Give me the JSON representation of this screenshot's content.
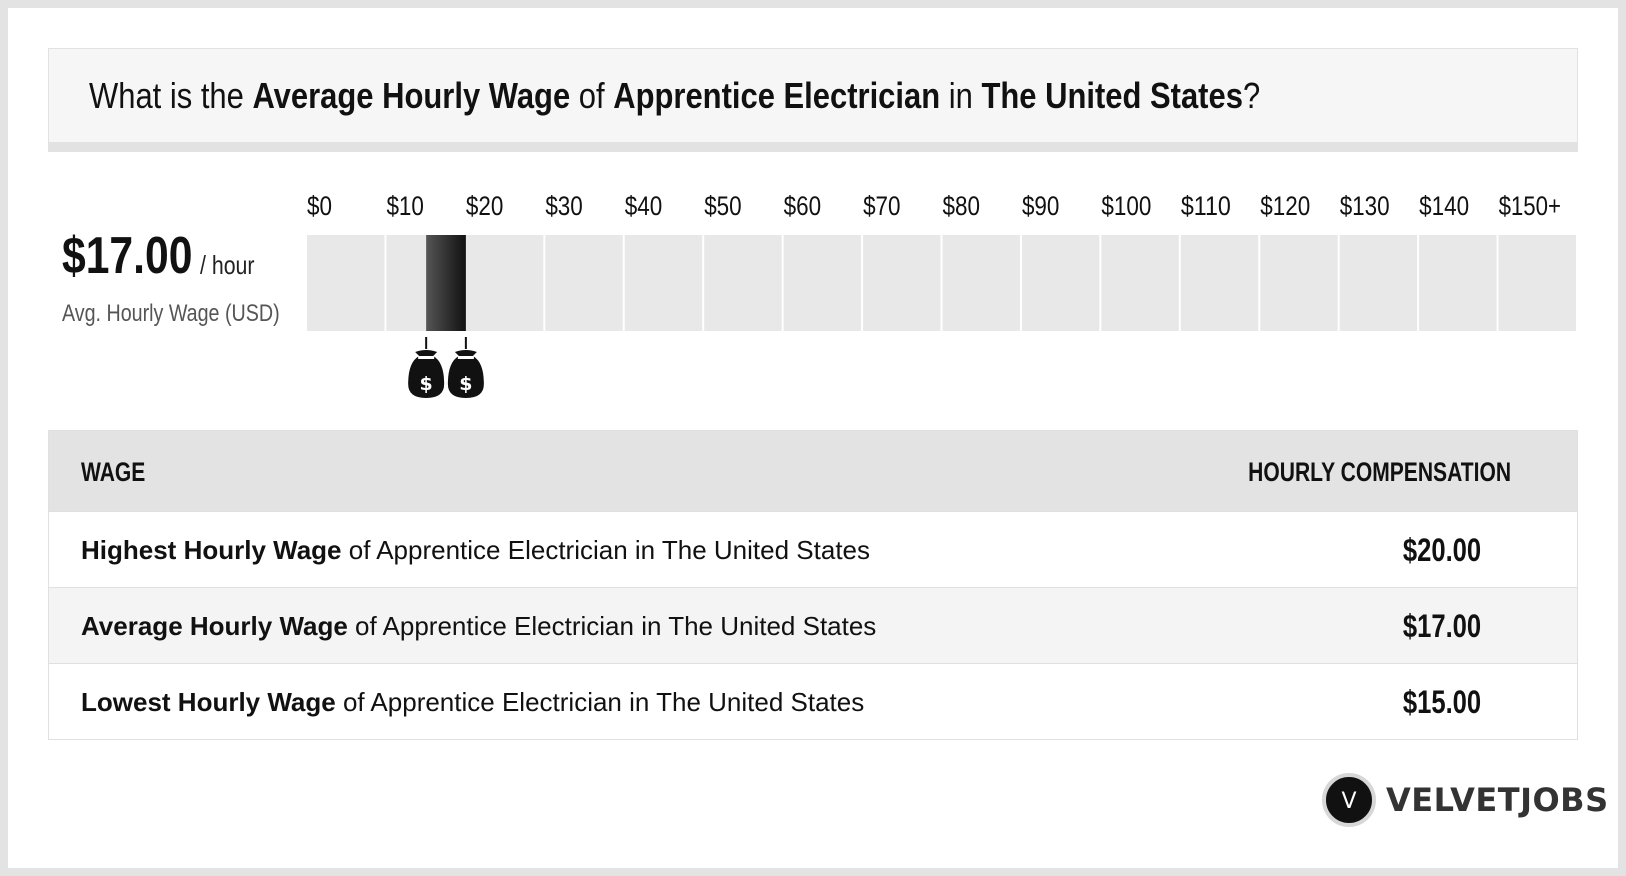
{
  "title": {
    "prefix": "What is the ",
    "metric": "Average Hourly Wage",
    "of": " of ",
    "job": "Apprentice Electrician",
    "in": " in ",
    "location": "The United States",
    "suffix": "?"
  },
  "summary": {
    "value": "$17.00",
    "unit": "/ hour",
    "label": "Avg. Hourly Wage (USD)"
  },
  "chart_data": {
    "type": "bar",
    "x_ticks": [
      "$0",
      "$10",
      "$20",
      "$30",
      "$40",
      "$50",
      "$60",
      "$70",
      "$80",
      "$90",
      "$100",
      "$110",
      "$120",
      "$130",
      "$140",
      "$150+"
    ],
    "xlim": [
      0,
      150
    ],
    "range": {
      "low": 15,
      "high": 20
    },
    "markers": [
      {
        "value": 15,
        "icon": "money-bag-icon",
        "symbol": "$"
      },
      {
        "value": 20,
        "icon": "money-bag-icon",
        "symbol": "$"
      }
    ],
    "colors": {
      "track": "#e8e8e8",
      "range_dark": "#111111",
      "range_light": "#555555"
    }
  },
  "table": {
    "col_wage": "WAGE",
    "col_comp": "HOURLY COMPENSATION",
    "rows": [
      {
        "bold": "Highest Hourly Wage",
        "rest": " of Apprentice Electrician in The United States",
        "value": "$20.00"
      },
      {
        "bold": "Average Hourly Wage",
        "rest": " of Apprentice Electrician in The United States",
        "value": "$17.00"
      },
      {
        "bold": "Lowest Hourly Wage",
        "rest": " of Apprentice Electrician in The United States",
        "value": "$15.00"
      }
    ]
  },
  "brand": {
    "icon_letter": "V",
    "name": "VELVETJOBS"
  }
}
